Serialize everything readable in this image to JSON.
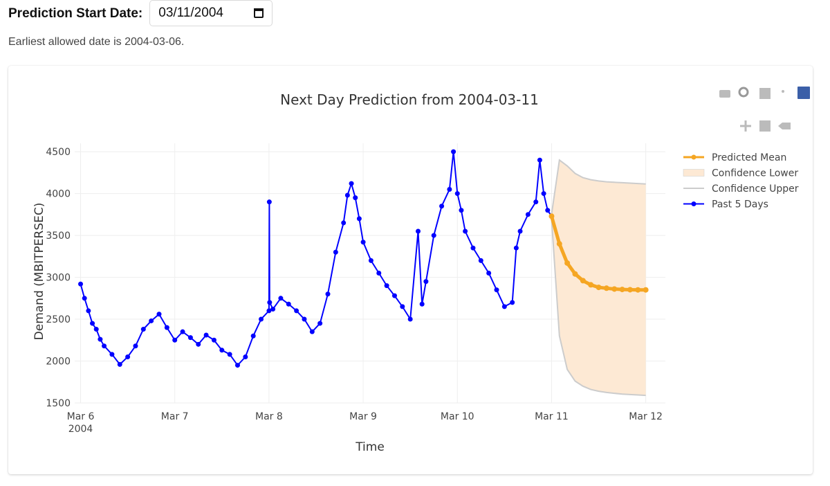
{
  "form": {
    "date_label": "Prediction Start Date:",
    "date_value": "03/11/2004",
    "hint": "Earliest allowed date is 2004-03-06."
  },
  "colors": {
    "past": "#0000ff",
    "predicted": "#f5a623",
    "band_fill": "#fde9d4",
    "band_line": "#cccccc"
  },
  "modebar_icons": [
    "camera-icon",
    "zoom-icon",
    "zoom-in-icon",
    "autoscale-icon",
    "plotly-logo-icon",
    "pan-icon",
    "zoom-out-icon",
    "reset-axes-icon"
  ],
  "chart_data": {
    "type": "line",
    "title": "Next Day Prediction from 2004-03-11",
    "xlabel": "Time",
    "ylabel": "Demand (MBITPERSEC)",
    "ylim": [
      1500,
      4600
    ],
    "yticks": [
      1500,
      2000,
      2500,
      3000,
      3500,
      4000,
      4500
    ],
    "xrange": [
      "2004-03-05 22:30",
      "2004-03-12 05:00"
    ],
    "xticks": [
      {
        "label": "Mar 6",
        "sub": "2004",
        "date": "2004-03-06"
      },
      {
        "label": "Mar 7",
        "sub": "",
        "date": "2004-03-07"
      },
      {
        "label": "Mar 8",
        "sub": "",
        "date": "2004-03-08"
      },
      {
        "label": "Mar 9",
        "sub": "",
        "date": "2004-03-09"
      },
      {
        "label": "Mar 10",
        "sub": "",
        "date": "2004-03-10"
      },
      {
        "label": "Mar 11",
        "sub": "",
        "date": "2004-03-11"
      },
      {
        "label": "Mar 12",
        "sub": "",
        "date": "2004-03-12"
      }
    ],
    "grid": true,
    "legend_position": "top-right",
    "series": [
      {
        "name": "Past 5 Days",
        "mode": "lines+markers",
        "x": [
          "2004-03-06 00:00",
          "2004-03-06 01:00",
          "2004-03-06 02:00",
          "2004-03-06 03:00",
          "2004-03-06 04:00",
          "2004-03-06 05:00",
          "2004-03-06 06:00",
          "2004-03-06 08:00",
          "2004-03-06 10:00",
          "2004-03-06 12:00",
          "2004-03-06 14:00",
          "2004-03-06 16:00",
          "2004-03-06 18:00",
          "2004-03-06 20:00",
          "2004-03-06 22:00",
          "2004-03-07 00:00",
          "2004-03-07 02:00",
          "2004-03-07 04:00",
          "2004-03-07 06:00",
          "2004-03-07 08:00",
          "2004-03-07 10:00",
          "2004-03-07 12:00",
          "2004-03-07 14:00",
          "2004-03-07 16:00",
          "2004-03-07 18:00",
          "2004-03-07 20:00",
          "2004-03-07 22:00",
          "2004-03-08 00:00",
          "2004-03-08 00:05",
          "2004-03-08 00:10",
          "2004-03-08 01:00",
          "2004-03-08 03:00",
          "2004-03-08 05:00",
          "2004-03-08 07:00",
          "2004-03-08 09:00",
          "2004-03-08 11:00",
          "2004-03-08 13:00",
          "2004-03-08 15:00",
          "2004-03-08 17:00",
          "2004-03-08 19:00",
          "2004-03-08 20:00",
          "2004-03-08 21:00",
          "2004-03-08 22:00",
          "2004-03-08 23:00",
          "2004-03-09 00:00",
          "2004-03-09 02:00",
          "2004-03-09 04:00",
          "2004-03-09 06:00",
          "2004-03-09 08:00",
          "2004-03-09 10:00",
          "2004-03-09 12:00",
          "2004-03-09 14:00",
          "2004-03-09 15:00",
          "2004-03-09 16:00",
          "2004-03-09 18:00",
          "2004-03-09 20:00",
          "2004-03-09 22:00",
          "2004-03-09 23:00",
          "2004-03-10 00:00",
          "2004-03-10 01:00",
          "2004-03-10 02:00",
          "2004-03-10 04:00",
          "2004-03-10 06:00",
          "2004-03-10 08:00",
          "2004-03-10 10:00",
          "2004-03-10 12:00",
          "2004-03-10 14:00",
          "2004-03-10 15:00",
          "2004-03-10 16:00",
          "2004-03-10 18:00",
          "2004-03-10 20:00",
          "2004-03-10 21:00",
          "2004-03-10 22:00",
          "2004-03-10 23:00",
          "2004-03-11 00:00"
        ],
        "y": [
          2920,
          2750,
          2600,
          2450,
          2380,
          2260,
          2180,
          2080,
          1960,
          2050,
          2180,
          2380,
          2480,
          2560,
          2400,
          2250,
          2350,
          2280,
          2200,
          2310,
          2250,
          2130,
          2080,
          1950,
          2050,
          2300,
          2500,
          2600,
          3900,
          2700,
          2620,
          2750,
          2680,
          2600,
          2500,
          2350,
          2450,
          2800,
          3300,
          3650,
          3980,
          4120,
          3950,
          3700,
          3420,
          3200,
          3050,
          2900,
          2780,
          2650,
          2500,
          3550,
          2680,
          2950,
          3500,
          3850,
          4050,
          4500,
          4000,
          3800,
          3550,
          3350,
          3200,
          3050,
          2850,
          2650,
          2700,
          3350,
          3550,
          3750,
          3900,
          4400,
          4000,
          3800,
          3730
        ]
      },
      {
        "name": "Predicted Mean",
        "mode": "lines+markers",
        "x": [
          "2004-03-11 00:00",
          "2004-03-11 02:00",
          "2004-03-11 04:00",
          "2004-03-11 06:00",
          "2004-03-11 08:00",
          "2004-03-11 10:00",
          "2004-03-11 12:00",
          "2004-03-11 14:00",
          "2004-03-11 16:00",
          "2004-03-11 18:00",
          "2004-03-11 20:00",
          "2004-03-11 22:00",
          "2004-03-12 00:00"
        ],
        "y": [
          3730,
          3400,
          3170,
          3040,
          2960,
          2910,
          2880,
          2870,
          2860,
          2855,
          2852,
          2850,
          2850
        ]
      },
      {
        "name": "Confidence Lower",
        "mode": "fill",
        "x": [
          "2004-03-11 00:00",
          "2004-03-11 02:00",
          "2004-03-11 04:00",
          "2004-03-11 06:00",
          "2004-03-11 08:00",
          "2004-03-11 10:00",
          "2004-03-11 12:00",
          "2004-03-11 14:00",
          "2004-03-11 16:00",
          "2004-03-11 18:00",
          "2004-03-11 20:00",
          "2004-03-11 22:00",
          "2004-03-12 00:00"
        ],
        "y": [
          3700,
          2300,
          1900,
          1760,
          1700,
          1660,
          1640,
          1625,
          1615,
          1605,
          1600,
          1595,
          1590
        ]
      },
      {
        "name": "Confidence Upper",
        "mode": "line",
        "x": [
          "2004-03-11 00:00",
          "2004-03-11 02:00",
          "2004-03-11 04:00",
          "2004-03-11 06:00",
          "2004-03-11 08:00",
          "2004-03-11 10:00",
          "2004-03-11 12:00",
          "2004-03-11 14:00",
          "2004-03-11 16:00",
          "2004-03-11 18:00",
          "2004-03-11 20:00",
          "2004-03-11 22:00",
          "2004-03-12 00:00"
        ],
        "y": [
          3750,
          4400,
          4330,
          4240,
          4190,
          4165,
          4150,
          4140,
          4135,
          4130,
          4125,
          4120,
          4115
        ]
      }
    ]
  }
}
